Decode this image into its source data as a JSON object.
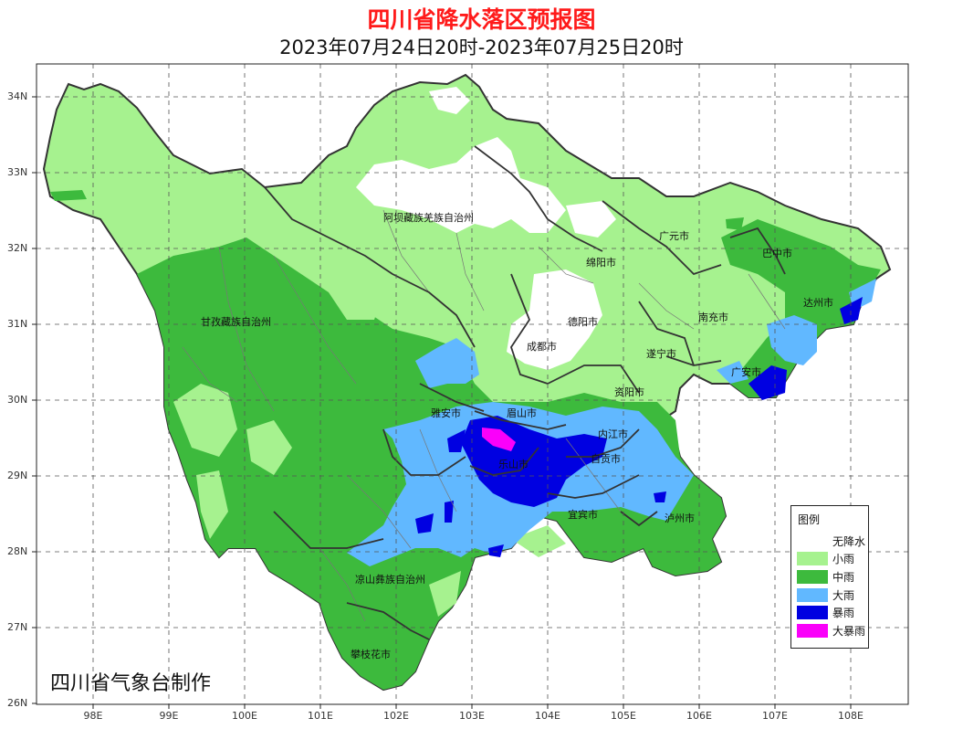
{
  "title": "四川省降水落区预报图",
  "subtitle": "2023年07月24日20时-2023年07月25日20时",
  "credit": "四川省气象台制作",
  "axes": {
    "x_ticks": [
      "98E",
      "99E",
      "100E",
      "101E",
      "102E",
      "103E",
      "104E",
      "105E",
      "106E",
      "107E",
      "108E"
    ],
    "y_ticks": [
      "34N",
      "33N",
      "32N",
      "31N",
      "30N",
      "29N",
      "28N",
      "27N",
      "26N"
    ]
  },
  "legend": {
    "title": "图例",
    "items": [
      {
        "label": "无降水",
        "color": "#ffffff"
      },
      {
        "label": "小雨",
        "color": "#a6f28f"
      },
      {
        "label": "中雨",
        "color": "#3dba3d"
      },
      {
        "label": "大雨",
        "color": "#61b8ff"
      },
      {
        "label": "暴雨",
        "color": "#0000e1"
      },
      {
        "label": "大暴雨",
        "color": "#fa00fa"
      }
    ]
  },
  "cities": [
    {
      "name": "阿坝藏族羌族自治州"
    },
    {
      "name": "广元市"
    },
    {
      "name": "巴中市"
    },
    {
      "name": "绵阳市"
    },
    {
      "name": "达州市"
    },
    {
      "name": "甘孜藏族自治州"
    },
    {
      "name": "德阳市"
    },
    {
      "name": "南充市"
    },
    {
      "name": "成都市"
    },
    {
      "name": "遂宁市"
    },
    {
      "name": "广安市"
    },
    {
      "name": "资阳市"
    },
    {
      "name": "雅安市"
    },
    {
      "name": "眉山市"
    },
    {
      "name": "内江市"
    },
    {
      "name": "乐山市"
    },
    {
      "name": "自贡市"
    },
    {
      "name": "宜宾市"
    },
    {
      "name": "泸州市"
    },
    {
      "name": "凉山彝族自治州"
    },
    {
      "name": "攀枝花市"
    }
  ]
}
